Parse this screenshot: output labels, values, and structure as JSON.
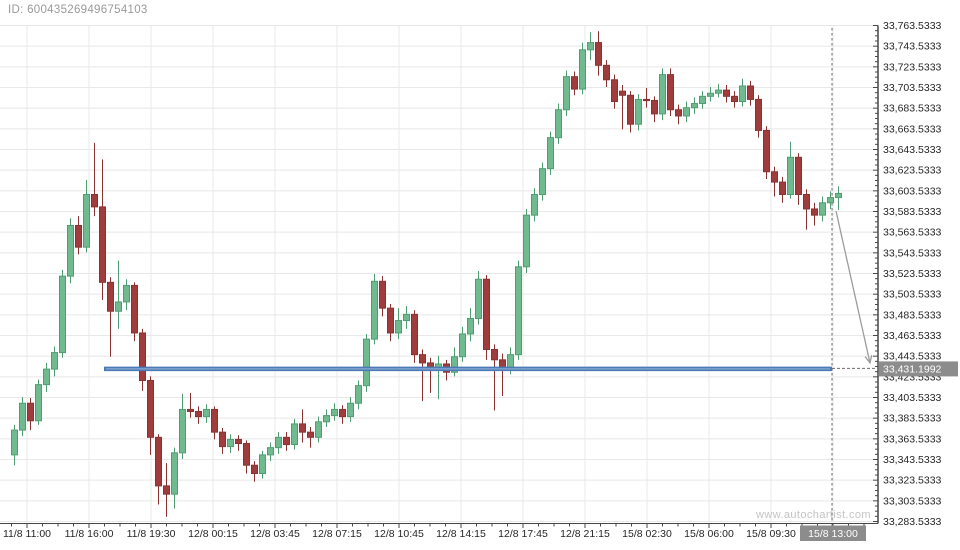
{
  "header": {
    "id_label": "ID: 600435269496754103"
  },
  "watermark": "www.autochartist.com",
  "colors": {
    "background": "#ffffff",
    "bull_fill": "#6fba8e",
    "bull_stroke": "#4f9e73",
    "bear_fill": "#a03c3c",
    "bear_stroke": "#8a3232",
    "support_line": "#4b7ab5",
    "support_line_highlight": "#8aabd4",
    "grid": "#e8e8e8",
    "axis": "#474747",
    "tick_text": "#262626",
    "tag_bg": "#8c8c8c",
    "tag_text": "#ffffff",
    "dashed": "#6b6b6b",
    "arrow": "#9c9c9c"
  },
  "chart_data": {
    "type": "candlestick",
    "title": "",
    "legend": [],
    "grid": true,
    "y_axis": {
      "side": "right",
      "max": 33763.5333,
      "min": 33283.5333,
      "step": 20,
      "minor_step": 5,
      "labels": [
        "33,763.5333",
        "33,743.5333",
        "33,723.5333",
        "33,703.5333",
        "33,683.5333",
        "33,663.5333",
        "33,643.5333",
        "33,623.5333",
        "33,603.5333",
        "33,583.5333",
        "33,563.5333",
        "33,543.5333",
        "33,523.5333",
        "33,503.5333",
        "33,483.5333",
        "33,463.5333",
        "33,443.5333",
        "33,423.5333",
        "33,403.5333",
        "33,383.5333",
        "33,363.5333",
        "33,343.5333",
        "33,323.5333",
        "33,303.5333",
        "33,283.5333"
      ]
    },
    "x_axis": {
      "labels": [
        "11/8 11:00",
        "11/8 16:00",
        "11/8 19:30",
        "12/8 00:15",
        "12/8 03:45",
        "12/8 07:15",
        "12/8 10:45",
        "12/8 14:15",
        "12/8 17:45",
        "12/8 21:15",
        "15/8 02:30",
        "15/8 06:00",
        "15/8 09:30",
        "15/8 13:00"
      ],
      "highlighted_index": 13,
      "highlighted_label": "15/8 13:00"
    },
    "support_line": {
      "price": 33431.1992,
      "label": "33,431.1992"
    },
    "current_time_label": "15/8 13:00",
    "forecast_arrow": {
      "from_price": 33584,
      "to_price": 33437
    },
    "candles": [
      [
        33348,
        33377,
        33338,
        33372
      ],
      [
        33372,
        33404,
        33366,
        33398
      ],
      [
        33398,
        33403,
        33372,
        33381
      ],
      [
        33381,
        33421,
        33377,
        33416
      ],
      [
        33416,
        33437,
        33409,
        33431
      ],
      [
        33431,
        33453,
        33424,
        33447
      ],
      [
        33447,
        33527,
        33442,
        33521
      ],
      [
        33521,
        33577,
        33514,
        33570
      ],
      [
        33570,
        33579,
        33542,
        33549
      ],
      [
        33549,
        33614,
        33544,
        33600
      ],
      [
        33600,
        33650,
        33579,
        33588
      ],
      [
        33588,
        33634,
        33498,
        33515
      ],
      [
        33515,
        33520,
        33443,
        33487
      ],
      [
        33487,
        33536,
        33470,
        33496
      ],
      [
        33496,
        33518,
        33488,
        33512
      ],
      [
        33512,
        33515,
        33458,
        33466
      ],
      [
        33466,
        33470,
        33410,
        33420
      ],
      [
        33420,
        33424,
        33348,
        33365
      ],
      [
        33365,
        33368,
        33300,
        33318
      ],
      [
        33318,
        33340,
        33288,
        33310
      ],
      [
        33310,
        33355,
        33296,
        33350
      ],
      [
        33350,
        33407,
        33344,
        33392
      ],
      [
        33392,
        33408,
        33384,
        33390
      ],
      [
        33390,
        33395,
        33378,
        33385
      ],
      [
        33385,
        33397,
        33379,
        33392
      ],
      [
        33392,
        33395,
        33363,
        33370
      ],
      [
        33370,
        33374,
        33349,
        33356
      ],
      [
        33356,
        33368,
        33350,
        33363
      ],
      [
        33363,
        33367,
        33352,
        33359
      ],
      [
        33359,
        33362,
        33330,
        33338
      ],
      [
        33338,
        33342,
        33322,
        33330
      ],
      [
        33330,
        33352,
        33325,
        33348
      ],
      [
        33348,
        33360,
        33342,
        33355
      ],
      [
        33355,
        33370,
        33349,
        33365
      ],
      [
        33365,
        33370,
        33352,
        33358
      ],
      [
        33358,
        33383,
        33353,
        33378
      ],
      [
        33378,
        33392,
        33360,
        33370
      ],
      [
        33370,
        33375,
        33355,
        33365
      ],
      [
        33365,
        33385,
        33360,
        33380
      ],
      [
        33380,
        33392,
        33375,
        33386
      ],
      [
        33386,
        33398,
        33381,
        33392
      ],
      [
        33392,
        33396,
        33378,
        33385
      ],
      [
        33385,
        33404,
        33380,
        33398
      ],
      [
        33398,
        33420,
        33392,
        33415
      ],
      [
        33415,
        33465,
        33409,
        33460
      ],
      [
        33460,
        33523,
        33455,
        33516
      ],
      [
        33516,
        33521,
        33482,
        33490
      ],
      [
        33490,
        33494,
        33458,
        33466
      ],
      [
        33466,
        33490,
        33460,
        33478
      ],
      [
        33478,
        33492,
        33470,
        33484
      ],
      [
        33484,
        33488,
        33437,
        33445
      ],
      [
        33445,
        33450,
        33400,
        33437
      ],
      [
        33437,
        33442,
        33408,
        33432
      ],
      [
        33432,
        33444,
        33402,
        33436
      ],
      [
        33436,
        33440,
        33420,
        33428
      ],
      [
        33428,
        33452,
        33424,
        33443
      ],
      [
        33443,
        33472,
        33438,
        33465
      ],
      [
        33465,
        33490,
        33458,
        33480
      ],
      [
        33480,
        33526,
        33474,
        33518
      ],
      [
        33518,
        33522,
        33440,
        33450
      ],
      [
        33450,
        33455,
        33391,
        33440
      ],
      [
        33440,
        33446,
        33405,
        33432
      ],
      [
        33432,
        33452,
        33426,
        33445
      ],
      [
        33445,
        33536,
        33440,
        33530
      ],
      [
        33530,
        33586,
        33524,
        33580
      ],
      [
        33580,
        33606,
        33574,
        33600
      ],
      [
        33600,
        33631,
        33594,
        33625
      ],
      [
        33625,
        33661,
        33619,
        33655
      ],
      [
        33655,
        33688,
        33649,
        33682
      ],
      [
        33682,
        33720,
        33676,
        33714
      ],
      [
        33714,
        33719,
        33696,
        33702
      ],
      [
        33702,
        33747,
        33697,
        33740
      ],
      [
        33740,
        33757,
        33730,
        33747
      ],
      [
        33747,
        33758,
        33715,
        33725
      ],
      [
        33725,
        33730,
        33704,
        33711
      ],
      [
        33711,
        33716,
        33683,
        33690
      ],
      [
        33700,
        33706,
        33663,
        33696
      ],
      [
        33696,
        33700,
        33660,
        33668
      ],
      [
        33668,
        33697,
        33662,
        33692
      ],
      [
        33692,
        33703,
        33684,
        33691
      ],
      [
        33691,
        33695,
        33670,
        33678
      ],
      [
        33678,
        33722,
        33672,
        33716
      ],
      [
        33716,
        33722,
        33676,
        33682
      ],
      [
        33682,
        33687,
        33668,
        33676
      ],
      [
        33676,
        33690,
        33670,
        33684
      ],
      [
        33684,
        33694,
        33678,
        33688
      ],
      [
        33688,
        33700,
        33683,
        33695
      ],
      [
        33695,
        33704,
        33690,
        33698
      ],
      [
        33698,
        33707,
        33694,
        33701
      ],
      [
        33701,
        33706,
        33689,
        33695
      ],
      [
        33695,
        33700,
        33684,
        33690
      ],
      [
        33690,
        33712,
        33685,
        33705
      ],
      [
        33705,
        33710,
        33686,
        33692
      ],
      [
        33692,
        33696,
        33655,
        33662
      ],
      [
        33662,
        33666,
        33615,
        33622
      ],
      [
        33622,
        33627,
        33598,
        33612
      ],
      [
        33612,
        33617,
        33592,
        33600
      ],
      [
        33600,
        33651,
        33596,
        33636
      ],
      [
        33636,
        33640,
        33590,
        33600
      ],
      [
        33600,
        33605,
        33566,
        33586
      ],
      [
        33586,
        33592,
        33570,
        33580
      ],
      [
        33580,
        33598,
        33574,
        33592
      ],
      [
        33592,
        33603,
        33586,
        33597
      ],
      [
        33597,
        33608,
        33585,
        33601
      ]
    ]
  }
}
